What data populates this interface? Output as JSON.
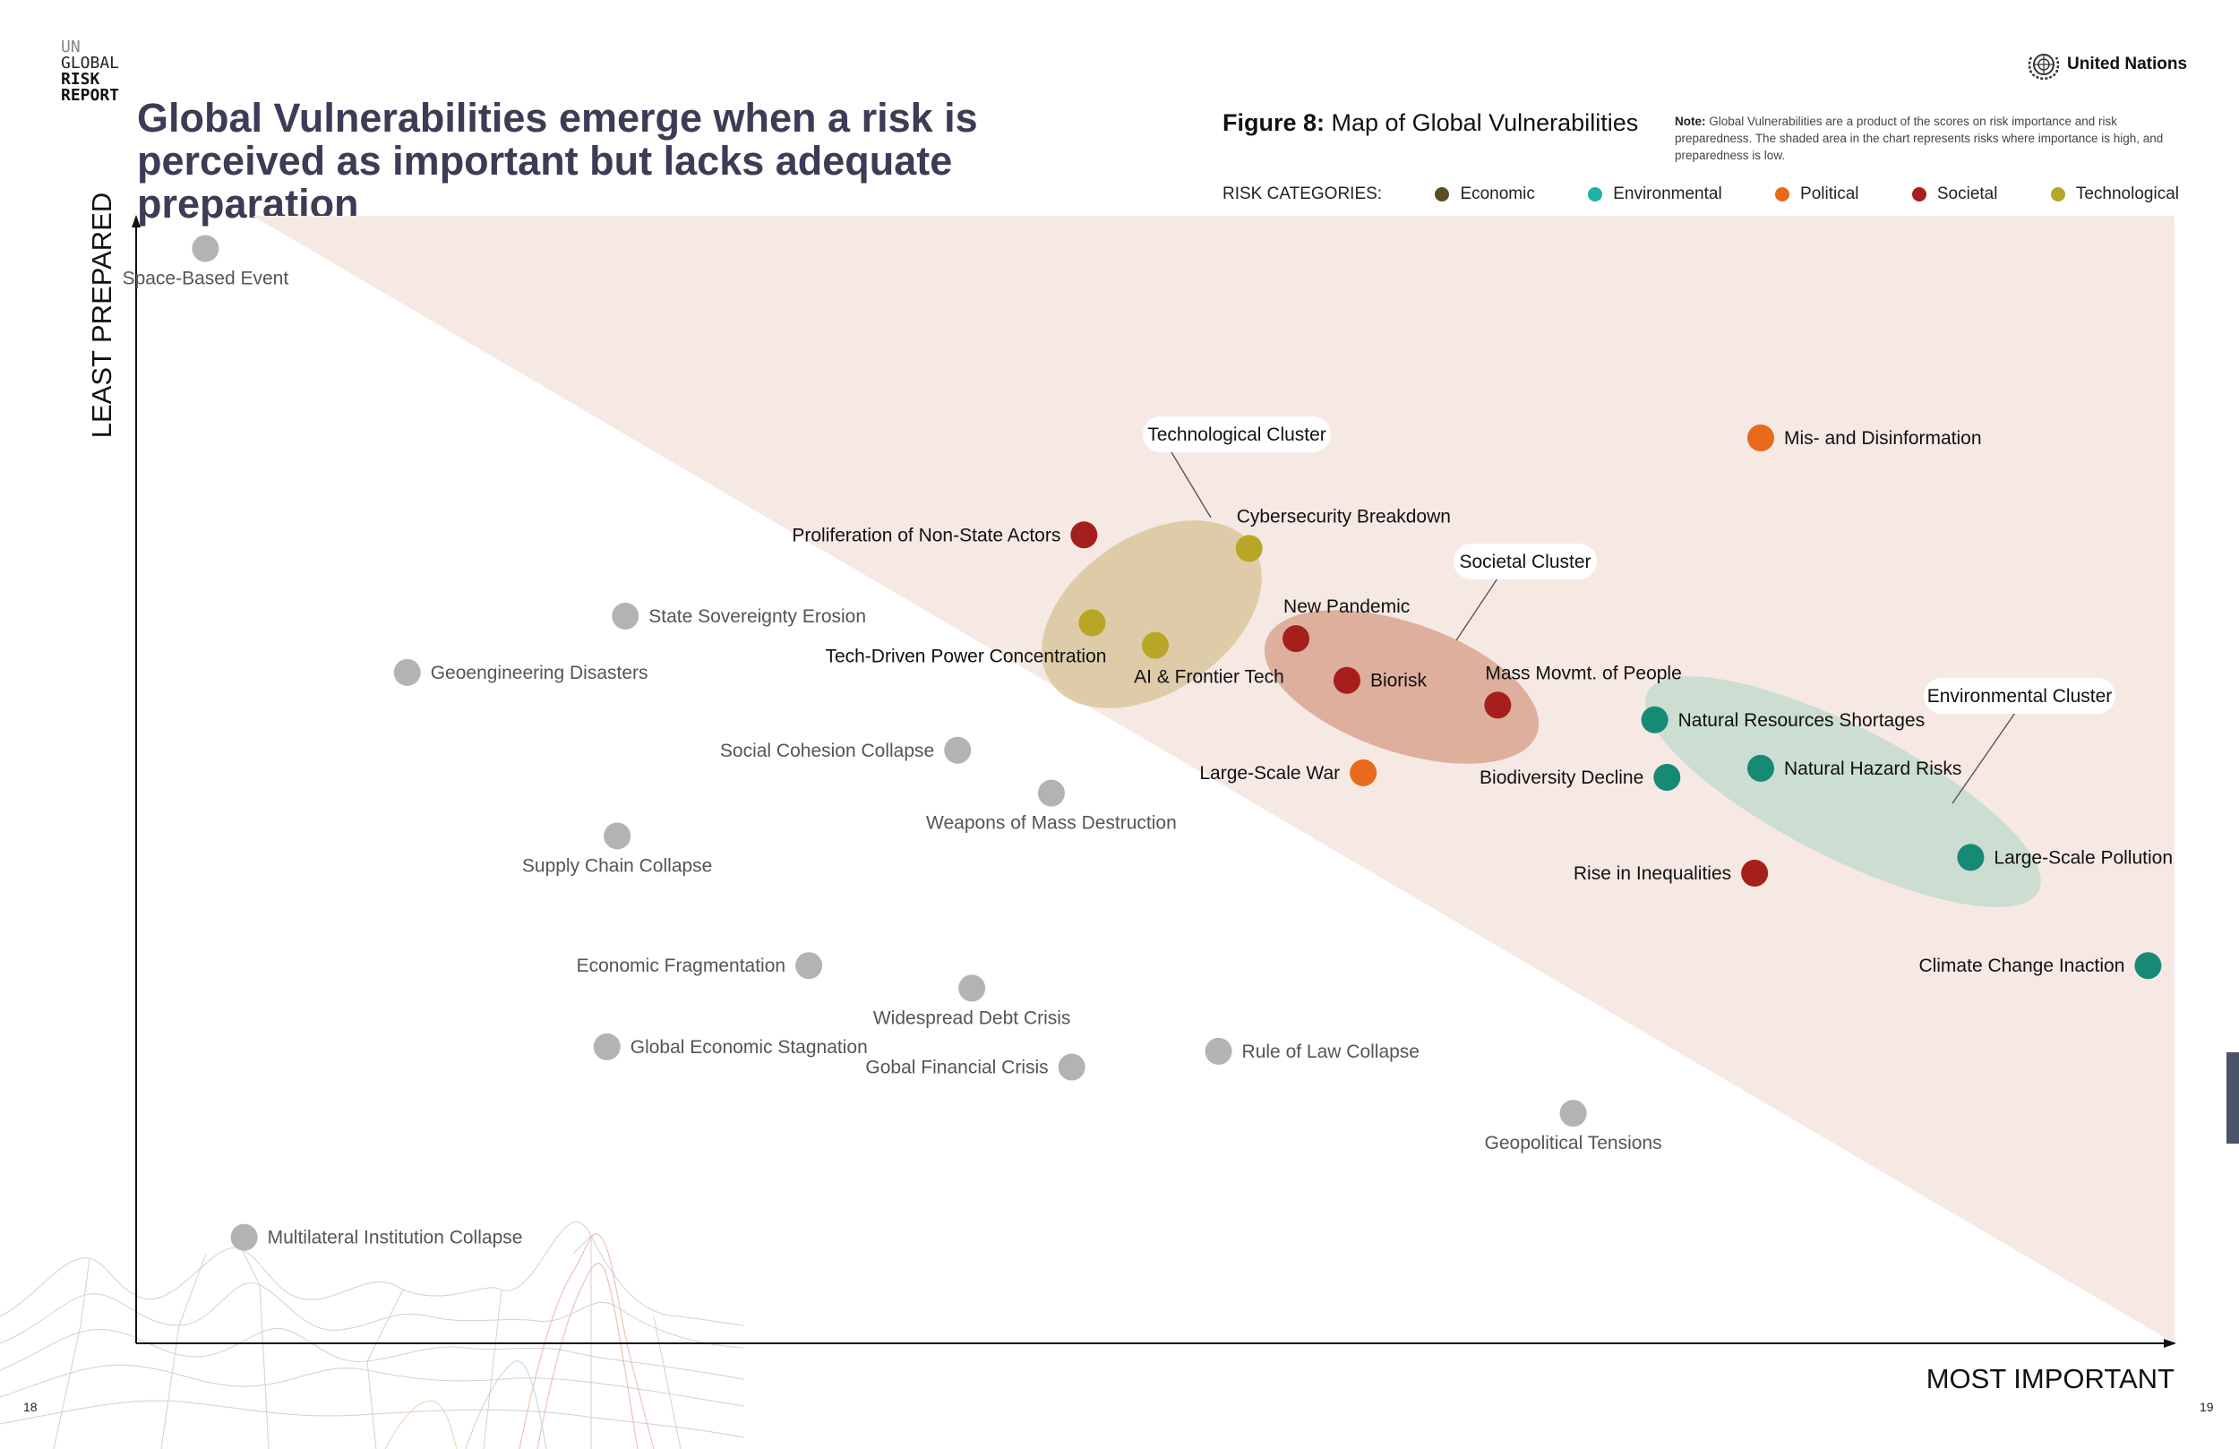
{
  "brand": {
    "line1": "UN",
    "line2": "GLOBAL",
    "line3": "RISK",
    "line4": "REPORT"
  },
  "header": {
    "title": "Global Vulnerabilities emerge when a risk is perceived as important but lacks adequate preparation",
    "figure_label": "Figure 8:",
    "figure_title": "Map of Global Vulnerabilities",
    "note_label": "Note:",
    "note_text": "Global Vulnerabilities are a product of the scores on risk importance and risk preparedness. The shaded area in the chart represents risks where importance is high, and preparedness is low.",
    "org_name": "United Nations",
    "org_icon": "un-emblem-icon"
  },
  "legend": {
    "label": "RISK CATEGORIES:",
    "items": [
      {
        "name": "Economic",
        "color": "#5b4f22"
      },
      {
        "name": "Environmental",
        "color": "#1fb3a5"
      },
      {
        "name": "Political",
        "color": "#e8681c"
      },
      {
        "name": "Societal",
        "color": "#a51f1c"
      },
      {
        "name": "Technological",
        "color": "#b8a726"
      }
    ]
  },
  "page_numbers": {
    "left": "18",
    "right": "19"
  },
  "chart_data": {
    "type": "scatter",
    "xlabel": "MOST IMPORTANT",
    "ylabel": "LEAST PREPARED",
    "shaded_region": "high importance, low preparedness (upper-right triangle)",
    "colors": {
      "inactive": "#b3b3b3",
      "Economic": "#5b4f22",
      "Environmental": "#178a76",
      "Political": "#e8681c",
      "Societal": "#a51f1c",
      "Technological": "#b8a726"
    },
    "clusters": [
      {
        "name": "Technological Cluster",
        "color": "#dcc9a1"
      },
      {
        "name": "Societal Cluster",
        "color": "#d9a491"
      },
      {
        "name": "Environmental Cluster",
        "color": "#c9dcd0"
      }
    ],
    "points": [
      {
        "label": "Space-Based Event",
        "x": 3.4,
        "y": 97.1,
        "category": "none"
      },
      {
        "label": "Mis- and Disinformation",
        "x": 79.7,
        "y": 80.3,
        "category": "Political"
      },
      {
        "label": "Proliferation of Non-State Actors",
        "x": 46.5,
        "y": 71.7,
        "category": "Societal"
      },
      {
        "label": "Cybersecurity Breakdown",
        "x": 54.6,
        "y": 70.5,
        "category": "Technological"
      },
      {
        "label": "State Sovereignty Erosion",
        "x": 24.0,
        "y": 64.5,
        "category": "none"
      },
      {
        "label": "Tech-Driven Power Concentration",
        "x": 46.9,
        "y": 63.9,
        "category": "Technological"
      },
      {
        "label": "New Pandemic",
        "x": 56.9,
        "y": 62.5,
        "category": "Societal"
      },
      {
        "label": "AI & Frontier Tech",
        "x": 50.0,
        "y": 61.9,
        "category": "Technological"
      },
      {
        "label": "Geoengineering Disasters",
        "x": 13.3,
        "y": 59.5,
        "category": "none"
      },
      {
        "label": "Biorisk",
        "x": 59.4,
        "y": 58.8,
        "category": "Societal"
      },
      {
        "label": "Mass Movmt. of People",
        "x": 66.8,
        "y": 56.6,
        "category": "Societal"
      },
      {
        "label": "Natural Resources Shortages",
        "x": 74.5,
        "y": 55.3,
        "category": "Environmental"
      },
      {
        "label": "Social Cohesion Collapse",
        "x": 40.3,
        "y": 52.6,
        "category": "none"
      },
      {
        "label": "Natural Hazard Risks",
        "x": 79.7,
        "y": 51.0,
        "category": "Environmental"
      },
      {
        "label": "Large-Scale War",
        "x": 60.2,
        "y": 50.6,
        "category": "Political"
      },
      {
        "label": "Biodiversity Decline",
        "x": 75.1,
        "y": 50.2,
        "category": "Environmental"
      },
      {
        "label": "Weapons of Mass Destruction",
        "x": 44.9,
        "y": 48.8,
        "category": "none"
      },
      {
        "label": "Supply Chain Collapse",
        "x": 23.6,
        "y": 45.0,
        "category": "none"
      },
      {
        "label": "Large-Scale Pollution",
        "x": 90.0,
        "y": 43.1,
        "category": "Environmental"
      },
      {
        "label": "Rise in Inequalities",
        "x": 79.4,
        "y": 41.7,
        "category": "Societal"
      },
      {
        "label": "Economic Fragmentation",
        "x": 33.0,
        "y": 33.5,
        "category": "none"
      },
      {
        "label": "Climate Change Inaction",
        "x": 98.7,
        "y": 33.5,
        "category": "Environmental"
      },
      {
        "label": "Widespread Debt Crisis",
        "x": 41.0,
        "y": 31.5,
        "category": "none"
      },
      {
        "label": "Global Economic Stagnation",
        "x": 23.1,
        "y": 26.3,
        "category": "none"
      },
      {
        "label": "Rule of Law Collapse",
        "x": 53.1,
        "y": 25.9,
        "category": "none"
      },
      {
        "label": "Gobal Financial Crisis",
        "x": 45.9,
        "y": 24.5,
        "category": "none"
      },
      {
        "label": "Geopolitical Tensions",
        "x": 70.5,
        "y": 20.4,
        "category": "none"
      },
      {
        "label": "Multilateral Institution Collapse",
        "x": 5.3,
        "y": 9.4,
        "category": "none"
      }
    ]
  }
}
